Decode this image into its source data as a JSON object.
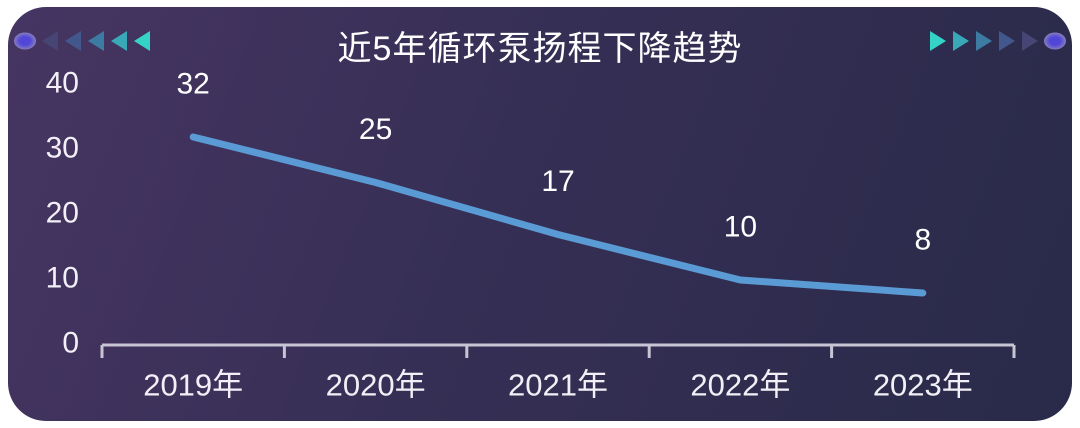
{
  "page": {
    "background_color": "#ffffff"
  },
  "card": {
    "title": "近5年循环泵扬程下降趋势",
    "background_gradient_start": "#46356226",
    "gradient_from": "#463562",
    "gradient_mid": "#362f55",
    "gradient_to": "#292a49"
  },
  "decorations": {
    "arrow_colors": [
      "#464573",
      "#42588d",
      "#3d7ba2",
      "#3aa9b7",
      "#35d3c7"
    ],
    "oval_inner_color": "#5246d8",
    "oval_outer_color": "#9a93b4"
  },
  "chart_data": {
    "type": "line",
    "title": "近5年循环泵扬程下降趋势",
    "categories": [
      "2019年",
      "2020年",
      "2021年",
      "2022年",
      "2023年"
    ],
    "values": [
      32,
      25,
      17,
      10,
      8
    ],
    "yticks": [
      0,
      10,
      20,
      30,
      40
    ],
    "ylim": [
      0,
      40
    ],
    "xlabel": "",
    "ylabel": "",
    "grid": false,
    "legend": "none",
    "line_color": "#5b9bd5",
    "axis_color": "#c7c4d4",
    "tick_label_color": "#f2f0f6",
    "label_color": "#ffffff"
  }
}
